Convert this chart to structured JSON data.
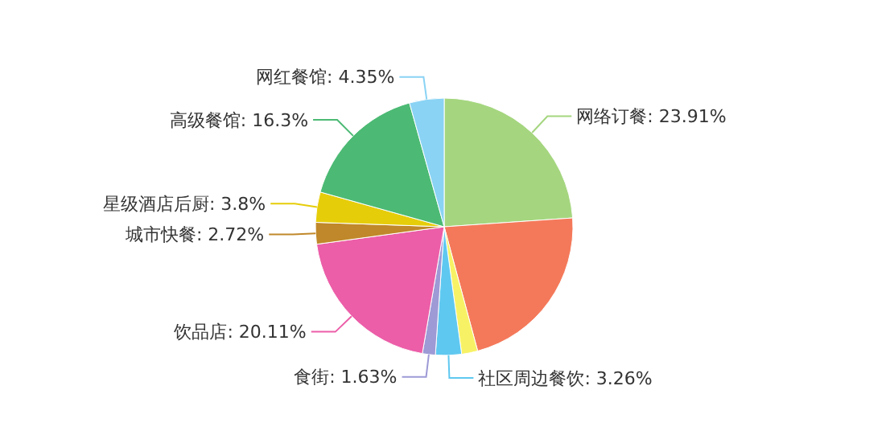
{
  "chart_data": {
    "type": "pie",
    "categories": [
      "网络订餐",
      null,
      null,
      "社区周边餐饮",
      "食街",
      "饮品店",
      "城市快餐",
      "星级酒店后厨",
      "高级餐馆",
      "网红餐馆"
    ],
    "values": [
      23.91,
      21.9,
      2.02,
      3.26,
      1.63,
      20.11,
      2.72,
      3.8,
      16.3,
      4.35
    ],
    "value_labels": [
      "23.91%",
      null,
      null,
      "3.26%",
      "1.63%",
      "20.11%",
      "2.72%",
      "3.8%",
      "16.3%",
      "4.35%"
    ],
    "colors": [
      "#a5d67f",
      "#f4795a",
      "#f7f265",
      "#5fc8f0",
      "#9d9ad6",
      "#ec5ea8",
      "#c0882a",
      "#e6cd0a",
      "#4cba74",
      "#8ad3f4"
    ]
  }
}
